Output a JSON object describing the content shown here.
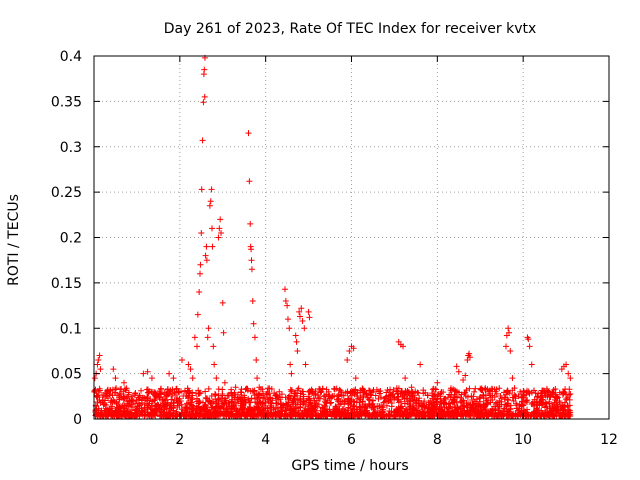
{
  "chart_data": {
    "type": "scatter",
    "title": "Day 261 of 2023, Rate Of TEC Index for receiver kvtx",
    "xlabel": "GPS time / hours",
    "ylabel": "ROTI / TECUs",
    "xlim": [
      0,
      12
    ],
    "ylim": [
      0,
      0.4
    ],
    "x_ticks": [
      0,
      2,
      4,
      6,
      8,
      10,
      12
    ],
    "y_ticks": [
      0,
      0.05,
      0.1,
      0.15,
      0.2,
      0.25,
      0.3,
      0.35,
      0.4
    ],
    "x_tick_labels": [
      "0",
      "2",
      "4",
      "6",
      "8",
      "10",
      "12"
    ],
    "y_tick_labels": [
      "0",
      "0.05",
      "0.1",
      "0.15",
      "0.2",
      "0.25",
      "0.3",
      "0.35",
      "0.4"
    ],
    "grid": true,
    "marker": "+",
    "color": "#ff0000",
    "data_x_range": [
      0,
      11.1
    ],
    "baseline_y_range": [
      0,
      0.05
    ],
    "series": [
      {
        "name": "ROTI",
        "points": [
          [
            0.02,
            0.045
          ],
          [
            0.05,
            0.05
          ],
          [
            0.08,
            0.06
          ],
          [
            0.1,
            0.065
          ],
          [
            0.13,
            0.07
          ],
          [
            0.15,
            0.055
          ],
          [
            0.45,
            0.055
          ],
          [
            0.5,
            0.045
          ],
          [
            0.7,
            0.04
          ],
          [
            1.15,
            0.05
          ],
          [
            1.25,
            0.052
          ],
          [
            1.35,
            0.045
          ],
          [
            1.75,
            0.05
          ],
          [
            1.85,
            0.045
          ],
          [
            2.05,
            0.065
          ],
          [
            2.2,
            0.06
          ],
          [
            2.25,
            0.055
          ],
          [
            2.3,
            0.045
          ],
          [
            2.35,
            0.09
          ],
          [
            2.4,
            0.08
          ],
          [
            2.42,
            0.115
          ],
          [
            2.45,
            0.14
          ],
          [
            2.47,
            0.16
          ],
          [
            2.48,
            0.17
          ],
          [
            2.5,
            0.205
          ],
          [
            2.51,
            0.253
          ],
          [
            2.53,
            0.307
          ],
          [
            2.55,
            0.349
          ],
          [
            2.56,
            0.38
          ],
          [
            2.57,
            0.385
          ],
          [
            2.58,
            0.355
          ],
          [
            2.585,
            0.398
          ],
          [
            2.6,
            0.18
          ],
          [
            2.62,
            0.19
          ],
          [
            2.63,
            0.175
          ],
          [
            2.65,
            0.09
          ],
          [
            2.67,
            0.1
          ],
          [
            2.7,
            0.235
          ],
          [
            2.72,
            0.24
          ],
          [
            2.74,
            0.253
          ],
          [
            2.75,
            0.21
          ],
          [
            2.76,
            0.19
          ],
          [
            2.78,
            0.08
          ],
          [
            2.8,
            0.06
          ],
          [
            2.85,
            0.045
          ],
          [
            2.9,
            0.2
          ],
          [
            2.92,
            0.21
          ],
          [
            2.94,
            0.22
          ],
          [
            2.96,
            0.205
          ],
          [
            3.0,
            0.128
          ],
          [
            3.02,
            0.095
          ],
          [
            3.05,
            0.04
          ],
          [
            3.3,
            0.035
          ],
          [
            3.6,
            0.315
          ],
          [
            3.62,
            0.262
          ],
          [
            3.64,
            0.215
          ],
          [
            3.65,
            0.19
          ],
          [
            3.66,
            0.187
          ],
          [
            3.67,
            0.175
          ],
          [
            3.68,
            0.165
          ],
          [
            3.7,
            0.13
          ],
          [
            3.72,
            0.105
          ],
          [
            3.75,
            0.09
          ],
          [
            3.78,
            0.065
          ],
          [
            3.8,
            0.045
          ],
          [
            3.85,
            0.035
          ],
          [
            4.45,
            0.143
          ],
          [
            4.47,
            0.13
          ],
          [
            4.5,
            0.125
          ],
          [
            4.52,
            0.11
          ],
          [
            4.55,
            0.1
          ],
          [
            4.57,
            0.06
          ],
          [
            4.6,
            0.05
          ],
          [
            4.7,
            0.092
          ],
          [
            4.72,
            0.085
          ],
          [
            4.74,
            0.075
          ],
          [
            4.78,
            0.118
          ],
          [
            4.8,
            0.113
          ],
          [
            4.83,
            0.122
          ],
          [
            4.86,
            0.108
          ],
          [
            4.9,
            0.1
          ],
          [
            4.93,
            0.06
          ],
          [
            5.0,
            0.118
          ],
          [
            5.02,
            0.112
          ],
          [
            5.3,
            0.03
          ],
          [
            5.9,
            0.065
          ],
          [
            5.95,
            0.075
          ],
          [
            6.0,
            0.08
          ],
          [
            6.05,
            0.078
          ],
          [
            6.1,
            0.045
          ],
          [
            6.5,
            0.03
          ],
          [
            7.1,
            0.085
          ],
          [
            7.15,
            0.082
          ],
          [
            7.2,
            0.08
          ],
          [
            7.25,
            0.045
          ],
          [
            7.4,
            0.035
          ],
          [
            7.6,
            0.06
          ],
          [
            8.0,
            0.04
          ],
          [
            8.45,
            0.058
          ],
          [
            8.5,
            0.052
          ],
          [
            8.6,
            0.043
          ],
          [
            8.65,
            0.048
          ],
          [
            8.7,
            0.065
          ],
          [
            8.72,
            0.07
          ],
          [
            8.74,
            0.072
          ],
          [
            8.76,
            0.068
          ],
          [
            9.2,
            0.03
          ],
          [
            9.6,
            0.08
          ],
          [
            9.62,
            0.092
          ],
          [
            9.65,
            0.1
          ],
          [
            9.67,
            0.095
          ],
          [
            9.7,
            0.075
          ],
          [
            9.75,
            0.045
          ],
          [
            10.1,
            0.09
          ],
          [
            10.12,
            0.088
          ],
          [
            10.15,
            0.08
          ],
          [
            10.2,
            0.06
          ],
          [
            10.5,
            0.03
          ],
          [
            10.9,
            0.055
          ],
          [
            10.95,
            0.058
          ],
          [
            11.0,
            0.06
          ],
          [
            11.05,
            0.05
          ],
          [
            11.1,
            0.045
          ]
        ]
      }
    ]
  }
}
